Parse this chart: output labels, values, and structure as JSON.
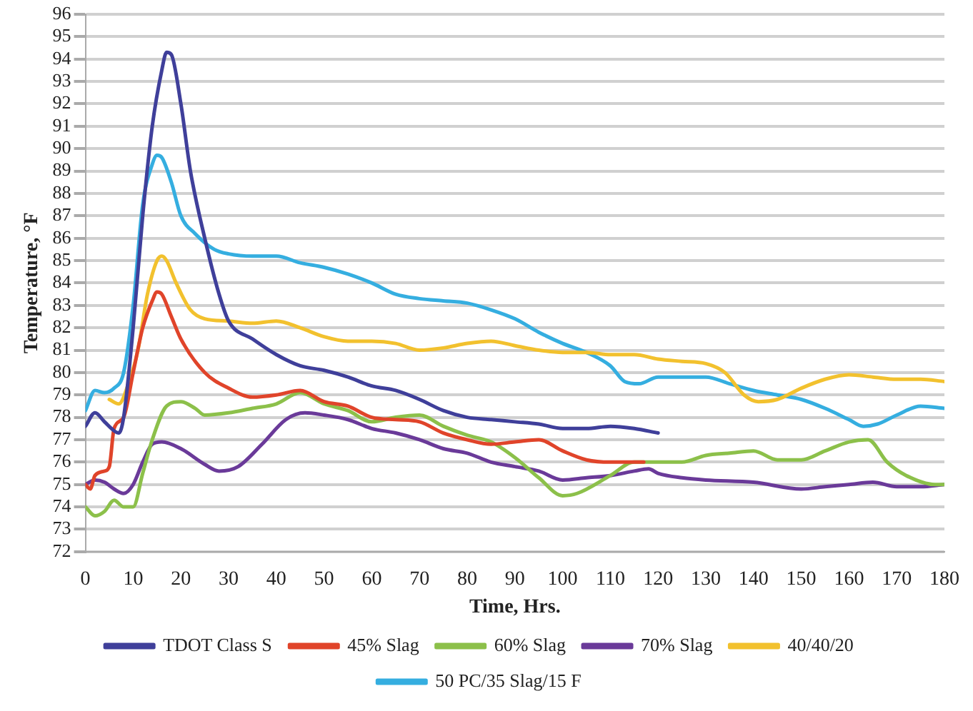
{
  "chart_data": {
    "type": "line",
    "xlabel": "Time, Hrs.",
    "ylabel": "Temperature, °F",
    "xlim": [
      0,
      180
    ],
    "xticks": [
      0,
      10,
      20,
      30,
      40,
      50,
      60,
      70,
      80,
      90,
      100,
      110,
      120,
      130,
      140,
      150,
      160,
      170,
      180
    ],
    "ylim": [
      72,
      96
    ],
    "yticks": [
      72,
      73,
      74,
      75,
      76,
      77,
      78,
      79,
      80,
      81,
      82,
      83,
      84,
      85,
      86,
      87,
      88,
      89,
      90,
      91,
      92,
      93,
      94,
      95,
      96
    ],
    "grid": "y",
    "legend": "bottom",
    "marker": "none",
    "line_style": "solid",
    "series": [
      {
        "name": "TDOT Class S",
        "color": "#3f3f9a",
        "x": [
          0,
          2,
          4,
          6,
          7,
          8,
          10,
          12,
          14,
          16,
          17,
          18,
          20,
          22,
          25,
          28,
          30,
          35,
          40,
          45,
          50,
          55,
          60,
          65,
          70,
          75,
          80,
          85,
          90,
          95,
          100,
          105,
          110,
          115,
          120
        ],
        "values": [
          77.6,
          78.2,
          77.8,
          77.4,
          77.3,
          78,
          82,
          87,
          91,
          93.5,
          94.3,
          94.2,
          92,
          89,
          86,
          83.5,
          82.3,
          81.5,
          80.8,
          80.3,
          80.1,
          79.8,
          79.4,
          79.2,
          78.8,
          78.3,
          78,
          77.9,
          77.8,
          77.7,
          77.5,
          77.5,
          77.6,
          77.5,
          77.3
        ]
      },
      {
        "name": "45% Slag",
        "color": "#e0442a",
        "x": [
          0,
          1,
          2,
          4,
          5,
          6,
          8,
          10,
          12,
          14,
          15,
          16,
          18,
          20,
          25,
          30,
          35,
          40,
          45,
          50,
          55,
          60,
          65,
          70,
          75,
          80,
          85,
          90,
          95,
          100,
          105,
          110,
          117
        ],
        "values": [
          75,
          74.8,
          75.4,
          75.6,
          75.8,
          77.5,
          78,
          80,
          82,
          83.2,
          83.6,
          83.5,
          82.5,
          81.5,
          80,
          79.3,
          78.9,
          79,
          79.2,
          78.7,
          78.5,
          78,
          77.9,
          77.8,
          77.3,
          77,
          76.8,
          76.9,
          77,
          76.5,
          76.1,
          76,
          76
        ]
      },
      {
        "name": "60% Slag",
        "color": "#8cc04a",
        "x": [
          0,
          2,
          4,
          6,
          8,
          10,
          12,
          14,
          17,
          20,
          23,
          25,
          30,
          35,
          40,
          45,
          50,
          55,
          60,
          65,
          70,
          75,
          80,
          85,
          90,
          95,
          100,
          103,
          110,
          115,
          120,
          125,
          130,
          135,
          140,
          145,
          150,
          155,
          160,
          164,
          168,
          172,
          178,
          180
        ],
        "values": [
          74,
          73.6,
          73.8,
          74.3,
          74,
          74,
          75.5,
          77,
          78.5,
          78.7,
          78.4,
          78.1,
          78.2,
          78.4,
          78.6,
          79.1,
          78.6,
          78.3,
          77.8,
          78,
          78.1,
          77.6,
          77.2,
          76.9,
          76.2,
          75.3,
          74.5,
          74.6,
          75.4,
          76,
          76,
          76,
          76.3,
          76.4,
          76.5,
          76.1,
          76.1,
          76.5,
          76.9,
          77,
          76,
          75.4,
          75,
          75
        ]
      },
      {
        "name": "70% Slag",
        "color": "#6a3a99",
        "x": [
          0,
          2,
          4,
          6,
          8,
          10,
          12,
          14,
          16,
          20,
          25,
          28,
          32,
          37,
          42,
          46,
          50,
          55,
          60,
          65,
          70,
          75,
          80,
          85,
          90,
          95,
          100,
          105,
          110,
          115,
          118,
          120,
          125,
          130,
          140,
          150,
          155,
          160,
          165,
          170,
          175,
          180
        ],
        "values": [
          75,
          75.2,
          75.1,
          74.8,
          74.6,
          75,
          76,
          76.8,
          76.9,
          76.6,
          75.9,
          75.6,
          75.8,
          76.8,
          77.9,
          78.2,
          78.1,
          77.9,
          77.5,
          77.3,
          77,
          76.6,
          76.4,
          76,
          75.8,
          75.6,
          75.2,
          75.3,
          75.4,
          75.6,
          75.7,
          75.5,
          75.3,
          75.2,
          75.1,
          74.8,
          74.9,
          75,
          75.1,
          74.9,
          74.9,
          75
        ]
      },
      {
        "name": "40/40/20",
        "color": "#f2c12e",
        "x": [
          5,
          7,
          9,
          11,
          13,
          15,
          16,
          17,
          19,
          22,
          25,
          30,
          35,
          40,
          45,
          50,
          55,
          60,
          65,
          70,
          75,
          80,
          85,
          90,
          95,
          100,
          105,
          110,
          115,
          120,
          125,
          130,
          134,
          138,
          141,
          145,
          150,
          155,
          160,
          165,
          170,
          175,
          180
        ],
        "values": [
          78.8,
          78.6,
          79.5,
          81,
          83.5,
          85,
          85.2,
          85,
          84,
          82.8,
          82.4,
          82.3,
          82.2,
          82.3,
          82,
          81.6,
          81.4,
          81.4,
          81.3,
          81,
          81.1,
          81.3,
          81.4,
          81.2,
          81,
          80.9,
          80.9,
          80.8,
          80.8,
          80.6,
          80.5,
          80.4,
          80,
          79,
          78.7,
          78.8,
          79.3,
          79.7,
          79.9,
          79.8,
          79.7,
          79.7,
          79.6
        ]
      },
      {
        "name": "50 PC/35 Slag/15 F",
        "color": "#35aee0",
        "x": [
          0,
          2,
          4,
          6,
          8,
          10,
          12,
          14,
          15,
          16,
          18,
          20,
          23,
          27,
          30,
          35,
          40,
          45,
          50,
          55,
          60,
          65,
          70,
          75,
          80,
          85,
          90,
          95,
          100,
          105,
          110,
          113,
          116,
          120,
          125,
          130,
          135,
          140,
          145,
          150,
          155,
          160,
          163,
          166,
          170,
          175,
          180
        ],
        "values": [
          78.3,
          79.2,
          79.1,
          79.3,
          80,
          83,
          87.5,
          89.3,
          89.7,
          89.6,
          88.5,
          87,
          86.2,
          85.5,
          85.3,
          85.2,
          85.2,
          84.9,
          84.7,
          84.4,
          84,
          83.5,
          83.3,
          83.2,
          83.1,
          82.8,
          82.4,
          81.8,
          81.3,
          80.9,
          80.3,
          79.6,
          79.5,
          79.8,
          79.8,
          79.8,
          79.5,
          79.2,
          79,
          78.8,
          78.4,
          77.9,
          77.6,
          77.7,
          78.1,
          78.5,
          78.4
        ]
      }
    ]
  }
}
